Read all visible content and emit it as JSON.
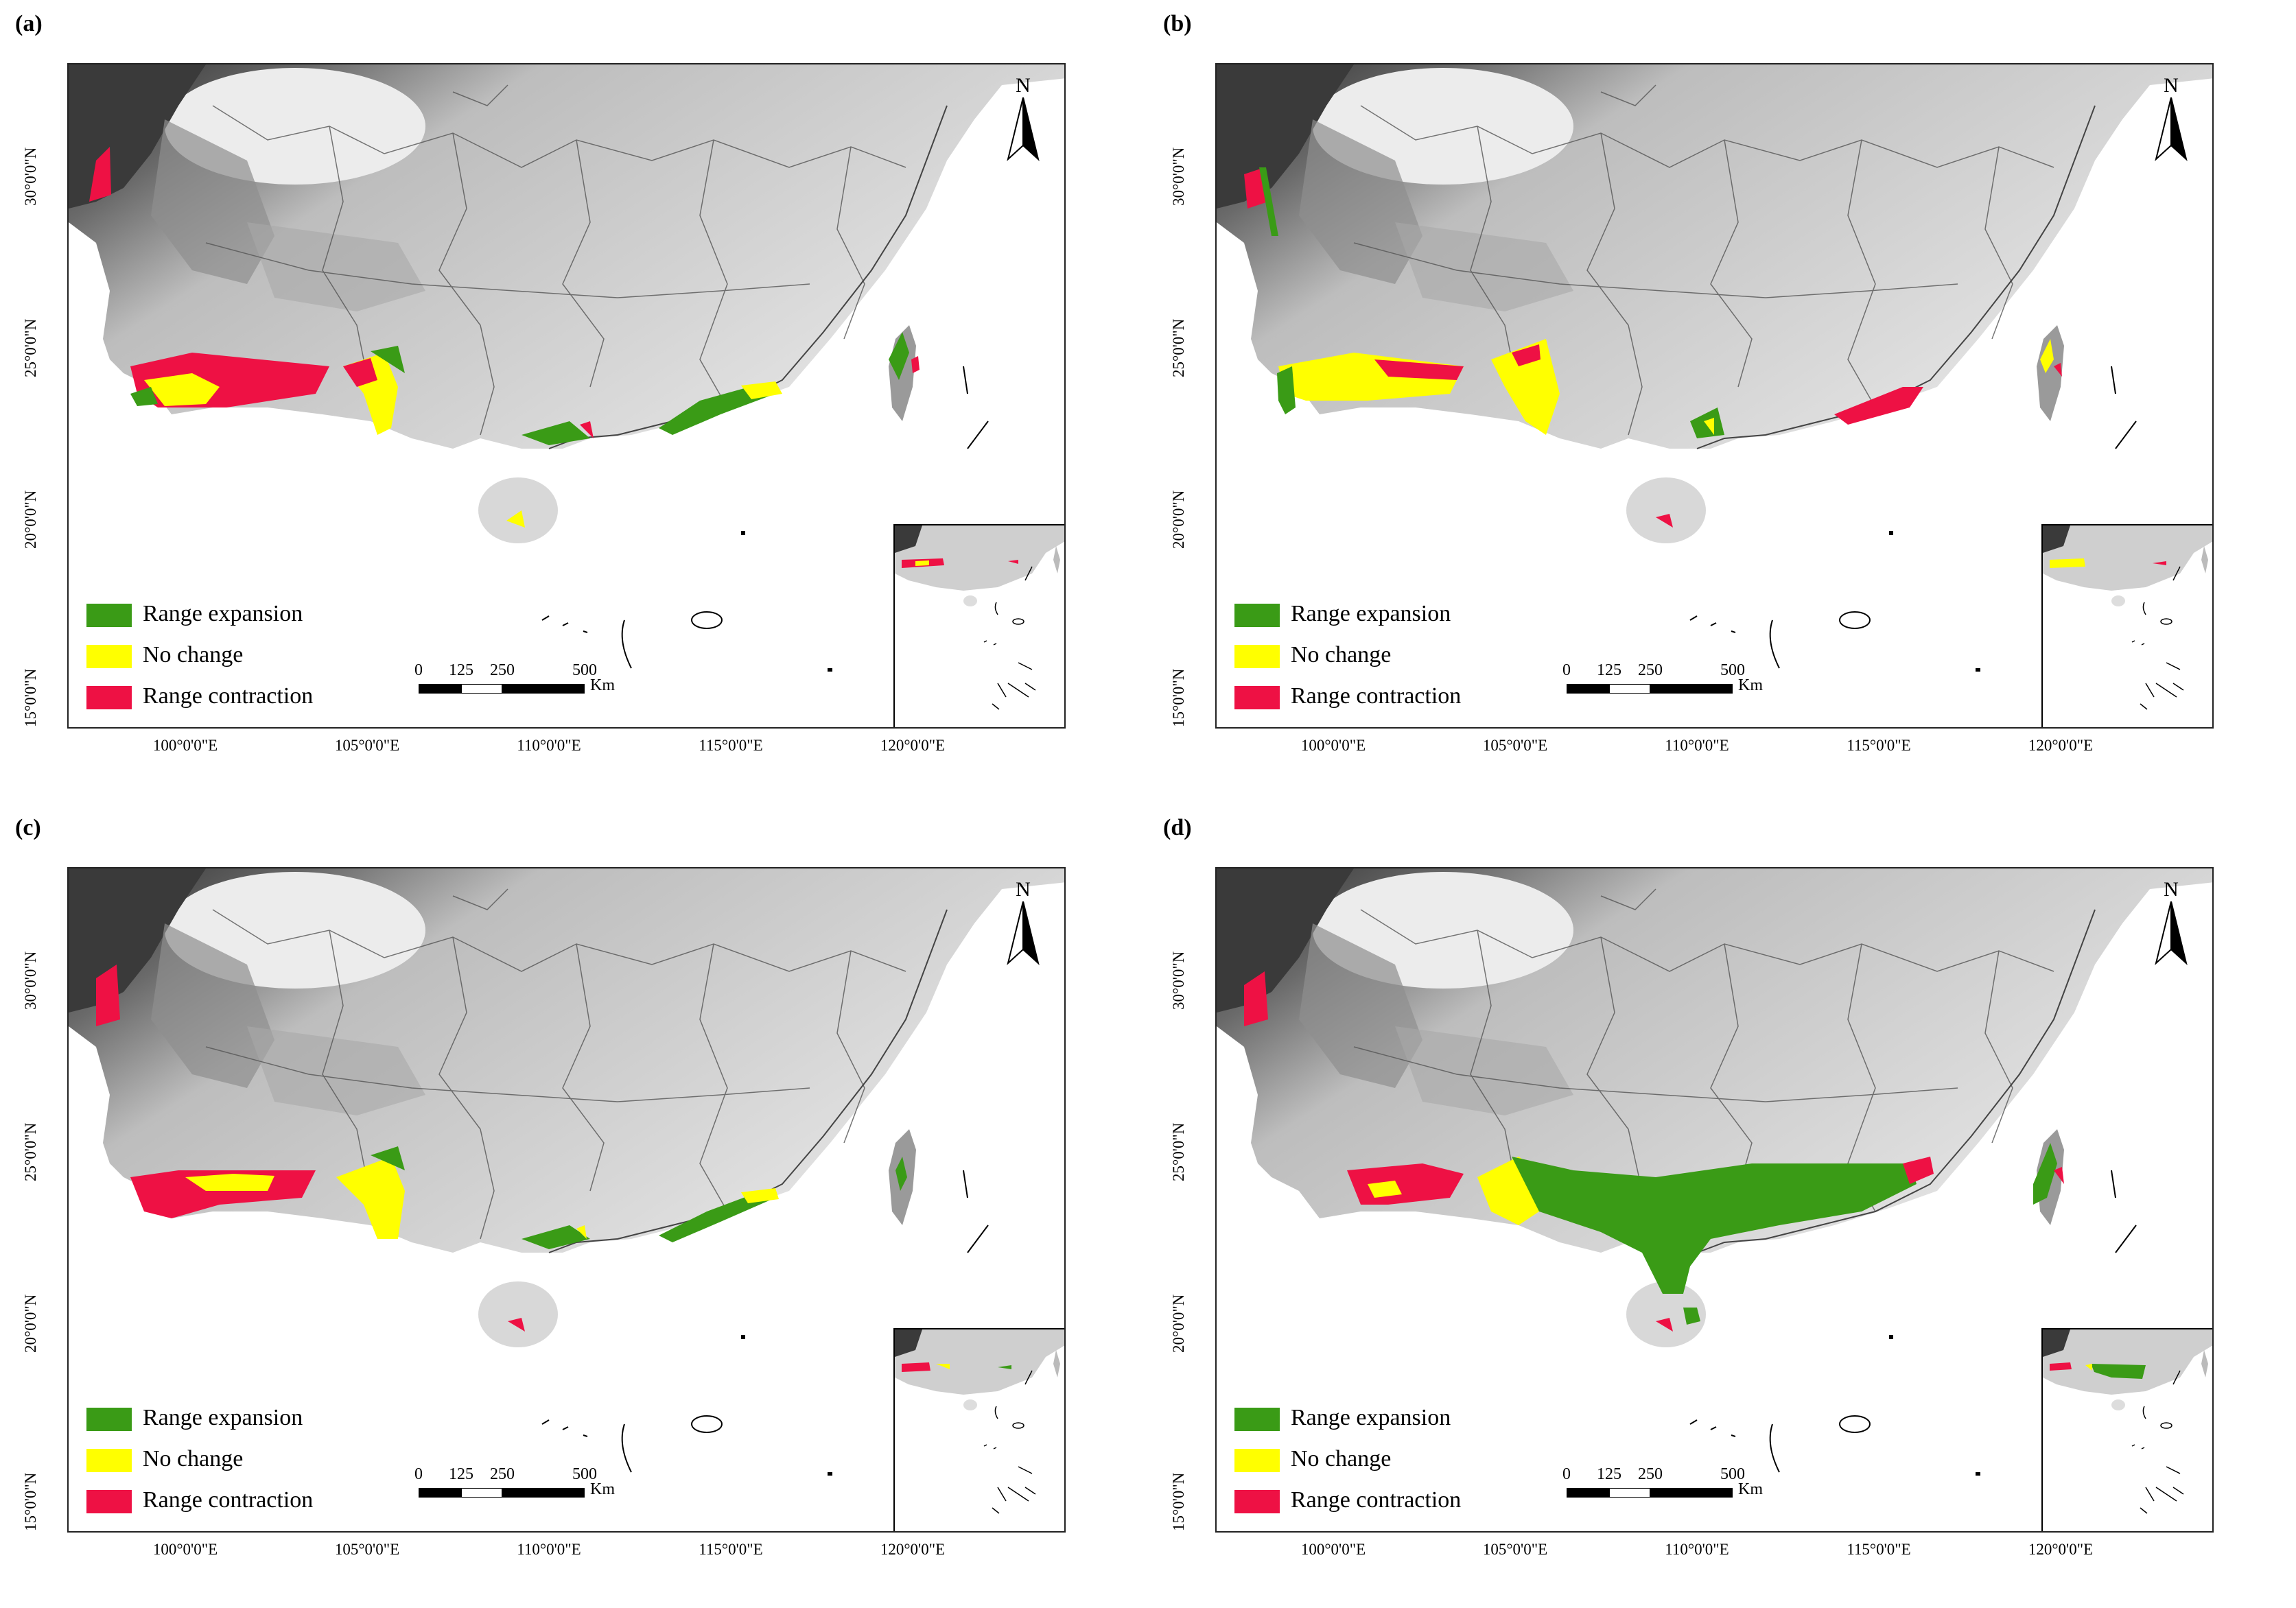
{
  "panels": [
    {
      "label": "(a)"
    },
    {
      "label": "(b)"
    },
    {
      "label": "(c)"
    },
    {
      "label": "(d)"
    }
  ],
  "legend": {
    "expansion": {
      "label": "Range expansion",
      "color": "#3a9b16"
    },
    "nochange": {
      "label": "No change",
      "color": "#ffff00"
    },
    "contraction": {
      "label": "Range contraction",
      "color": "#ee1144"
    }
  },
  "lat_labels": [
    "30°0'0\"N",
    "25°0'0\"N",
    "20°0'0\"N",
    "15°0'0\"N"
  ],
  "lon_labels": [
    "100°0'0\"E",
    "105°0'0\"E",
    "110°0'0\"E",
    "115°0'0\"E",
    "120°0'0\"E"
  ],
  "scale": {
    "ticks": [
      "0",
      "125",
      "250",
      "500"
    ],
    "unit": "Km"
  },
  "north_label": "N"
}
